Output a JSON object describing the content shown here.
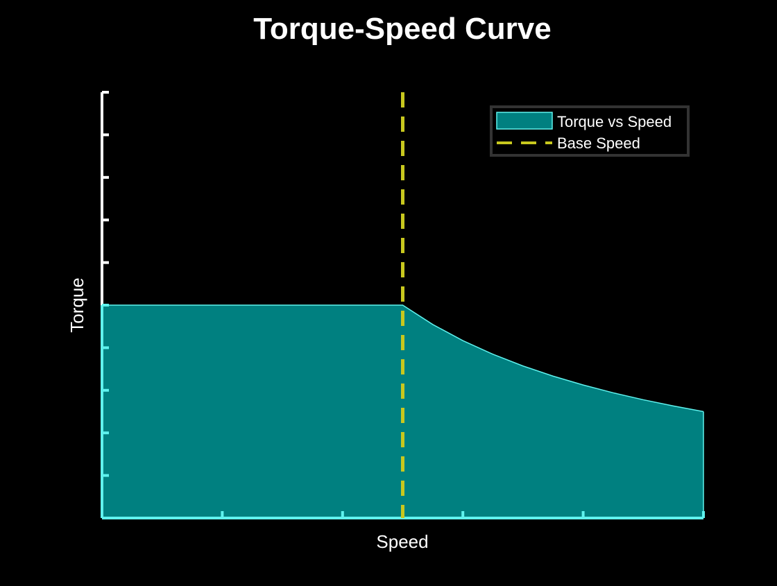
{
  "chart_data": {
    "type": "area",
    "title": "Torque-Speed Curve",
    "xlabel": "Speed",
    "ylabel": "Torque",
    "xlim": [
      0,
      5
    ],
    "ylim": [
      0,
      10
    ],
    "x_ticks": [
      0,
      1,
      2,
      3,
      4,
      5
    ],
    "y_ticks": [
      0,
      1,
      2,
      3,
      4,
      5,
      6,
      7,
      8,
      9,
      10
    ],
    "tick_labels_visible": false,
    "grid": false,
    "legend_position": "top-right",
    "series": [
      {
        "name": "Torque vs Speed",
        "kind": "filled-area",
        "color": "#008080",
        "edge_color": "#5ff2ee",
        "x": [
          0,
          0.5,
          1,
          1.5,
          2,
          2.5,
          2.75,
          3,
          3.25,
          3.5,
          3.75,
          4,
          4.25,
          4.5,
          4.75,
          5
        ],
        "y": [
          5,
          5,
          5,
          5,
          5,
          5,
          4.545,
          4.167,
          3.846,
          3.571,
          3.333,
          3.125,
          2.941,
          2.778,
          2.632,
          2.5
        ]
      },
      {
        "name": "Base Speed",
        "kind": "vertical-dashed-line",
        "color": "#c8c81e",
        "x": 2.5
      }
    ],
    "axis_color": "#ffffff",
    "axis_highlight_color": "#5ff2ee",
    "background": "#000000"
  }
}
